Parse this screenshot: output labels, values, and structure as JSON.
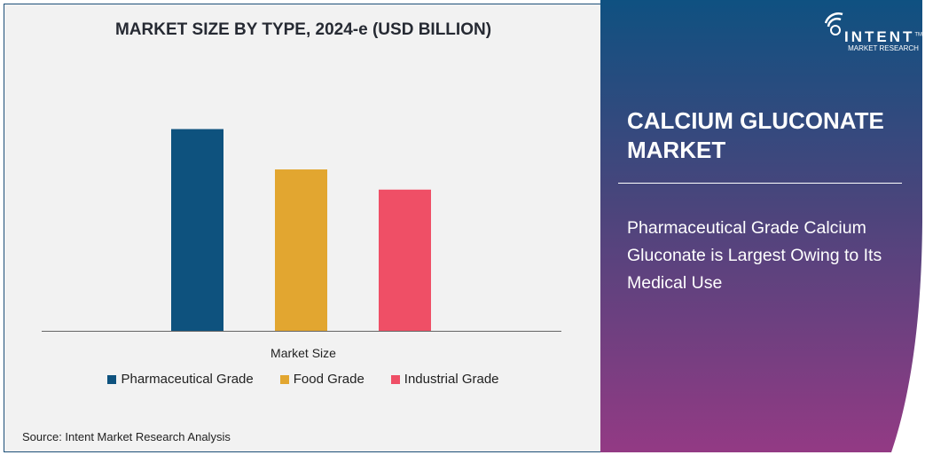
{
  "chart_data": {
    "type": "bar",
    "title": "MARKET SIZE BY TYPE, 2024-e (USD BILLION)",
    "xlabel": "Market Size",
    "ylabel": "",
    "categories": [
      "Market Size"
    ],
    "series": [
      {
        "name": "Pharmaceutical Grade",
        "values": [
          1.0
        ],
        "color": "#0e527e"
      },
      {
        "name": "Food Grade",
        "values": [
          0.8
        ],
        "color": "#e2a630"
      },
      {
        "name": "Industrial Grade",
        "values": [
          0.7
        ],
        "color": "#ef4f66"
      }
    ],
    "value_note": "relative (no axis values shown)",
    "ylim": [
      0,
      1.42
    ],
    "grid": false,
    "legend": "bottom"
  },
  "source": "Source: Intent Market Research Analysis",
  "brand": {
    "name": "INTENT",
    "tm": "TM",
    "sub": "MARKET RESEARCH"
  },
  "panel": {
    "title": "CALCIUM GLUCONATE MARKET",
    "subtitle": "Pharmaceutical Grade Calcium Gluconate is Largest Owing to Its Medical Use"
  }
}
